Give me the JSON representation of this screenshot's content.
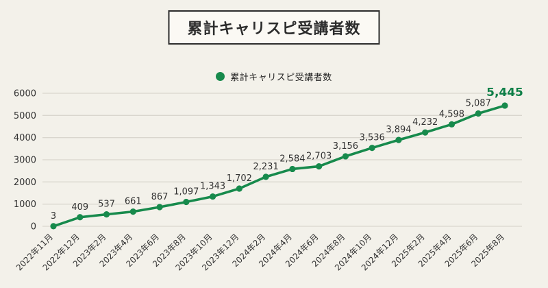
{
  "title": "累計キャリスピ受講者数",
  "legend": {
    "label": "累計キャリスピ受講者数",
    "marker": "circle"
  },
  "colors": {
    "background": "#f3f1ea",
    "line": "#178a4c",
    "grid": "#d9d6ce",
    "text": "#333333",
    "last_label": "#0d7f47"
  },
  "chart_data": {
    "type": "line",
    "title": "累計キャリスピ受講者数",
    "legend_entries": [
      "累計キャリスピ受講者数"
    ],
    "legend_position": "top-center",
    "grid": true,
    "xlabel": "",
    "ylabel": "",
    "ylim": [
      0,
      6000
    ],
    "ytick_step": 1000,
    "ytick_labels": [
      "0",
      "1000",
      "2000",
      "3000",
      "4000",
      "5000",
      "6000"
    ],
    "categories": [
      "2022年11月",
      "2022年12月",
      "2023年2月",
      "2023年4月",
      "2023年6月",
      "2023年8月",
      "2023年10月",
      "2023年12月",
      "2024年2月",
      "2024年4月",
      "2024年6月",
      "2024年8月",
      "2024年10月",
      "2024年12月",
      "2025年2月",
      "2025年4月",
      "2025年6月",
      "2025年8月"
    ],
    "values": [
      3,
      409,
      537,
      661,
      867,
      1097,
      1343,
      1702,
      2231,
      2584,
      2703,
      3156,
      3536,
      3894,
      4232,
      4598,
      5087,
      5445
    ],
    "point_labels": [
      "3",
      "409",
      "537",
      "661",
      "867",
      "1,097",
      "1,343",
      "1,702",
      "2,231",
      "2,584",
      "2,703",
      "3,156",
      "3,536",
      "3,894",
      "4,232",
      "4,598",
      "5,087",
      "5,445"
    ],
    "last_point_emphasized": true
  }
}
